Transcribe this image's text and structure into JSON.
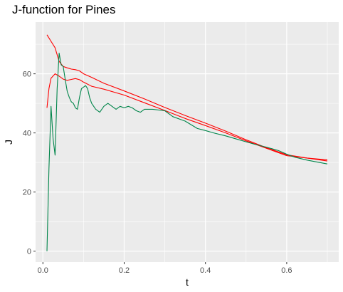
{
  "chart_data": {
    "type": "line",
    "title": "J-function for Pines",
    "xlabel": "t",
    "ylabel": "J",
    "xlim": [
      -0.018,
      0.728
    ],
    "ylim": [
      -3.7,
      77.5
    ],
    "xticks": [
      0.0,
      0.2,
      0.4,
      0.6
    ],
    "yticks": [
      0,
      20,
      40,
      60
    ],
    "xtick_labels": [
      "0.0",
      "0.2",
      "0.4",
      "0.6"
    ],
    "ytick_labels": [
      "0",
      "20",
      "40",
      "60"
    ],
    "grid": true,
    "panel_background": "#ebebeb",
    "gridline_color": "#ffffff",
    "legend": "none",
    "series": [
      {
        "color": "#ff0000",
        "x": [
          0.01,
          0.02,
          0.03,
          0.04,
          0.05,
          0.06,
          0.07,
          0.08,
          0.09,
          0.1,
          0.12,
          0.15,
          0.2,
          0.25,
          0.3,
          0.35,
          0.4,
          0.45,
          0.5,
          0.55,
          0.6,
          0.65,
          0.7
        ],
        "y": [
          73.2,
          71.0,
          68.8,
          64.2,
          62.5,
          62.0,
          61.6,
          61.4,
          61.0,
          60.0,
          58.8,
          56.8,
          54.2,
          51.5,
          48.6,
          45.9,
          43.3,
          40.6,
          37.7,
          35.0,
          32.6,
          31.5,
          30.9
        ]
      },
      {
        "color": "#ff0000",
        "x": [
          0.01,
          0.015,
          0.02,
          0.03,
          0.04,
          0.05,
          0.06,
          0.07,
          0.08,
          0.09,
          0.1,
          0.12,
          0.15,
          0.2,
          0.25,
          0.3,
          0.35,
          0.4,
          0.45,
          0.5,
          0.55,
          0.6,
          0.65,
          0.7
        ],
        "y": [
          48.5,
          55.0,
          58.5,
          60.0,
          59.2,
          58.2,
          57.8,
          58.1,
          58.4,
          58.0,
          57.2,
          55.8,
          54.8,
          52.8,
          50.2,
          47.6,
          44.9,
          42.5,
          40.0,
          37.3,
          34.8,
          32.3,
          31.5,
          30.5
        ]
      },
      {
        "color": "#00854a",
        "x": [
          0.01,
          0.015,
          0.02,
          0.025,
          0.03,
          0.035,
          0.04,
          0.045,
          0.05,
          0.055,
          0.06,
          0.065,
          0.07,
          0.075,
          0.08,
          0.085,
          0.09,
          0.095,
          0.1,
          0.105,
          0.11,
          0.115,
          0.12,
          0.125,
          0.13,
          0.14,
          0.15,
          0.16,
          0.17,
          0.18,
          0.19,
          0.2,
          0.21,
          0.22,
          0.23,
          0.24,
          0.25,
          0.27,
          0.3,
          0.32,
          0.35,
          0.38,
          0.4,
          0.42,
          0.45,
          0.48,
          0.5,
          0.52,
          0.55,
          0.58,
          0.6,
          0.62,
          0.65,
          0.68,
          0.7
        ],
        "y": [
          0.0,
          28.0,
          49.0,
          38.0,
          32.5,
          55.0,
          67.0,
          63.0,
          62.5,
          58.0,
          54.0,
          52.0,
          50.5,
          50.0,
          48.5,
          48.0,
          52.0,
          55.0,
          55.5,
          56.0,
          55.0,
          52.0,
          50.0,
          49.0,
          48.0,
          47.0,
          49.0,
          50.0,
          49.0,
          48.0,
          49.0,
          48.5,
          49.0,
          48.5,
          47.5,
          47.0,
          48.0,
          48.0,
          47.5,
          45.5,
          44.0,
          41.5,
          40.8,
          40.0,
          39.0,
          37.8,
          37.0,
          36.2,
          35.2,
          34.0,
          32.8,
          31.8,
          30.8,
          30.0,
          29.5
        ]
      }
    ]
  }
}
